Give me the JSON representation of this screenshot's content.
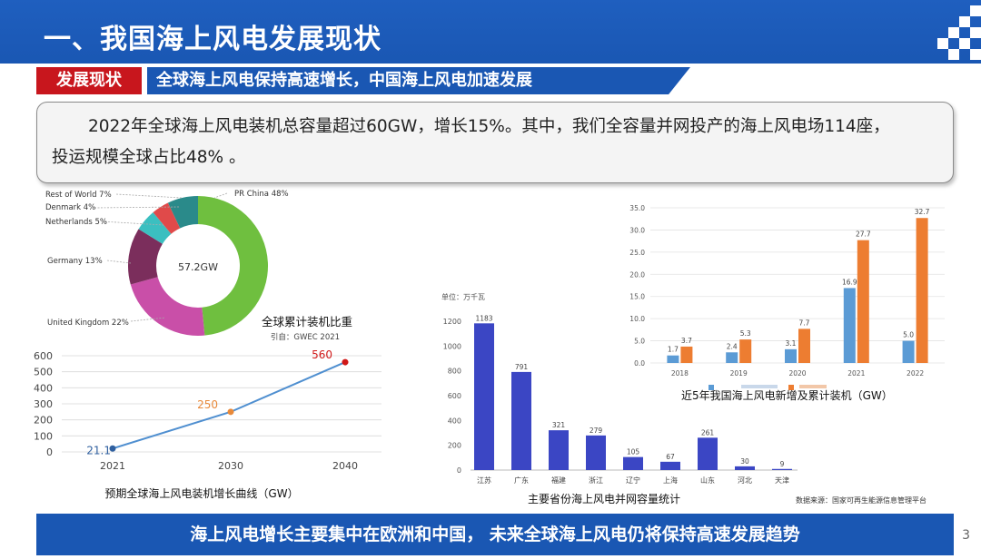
{
  "header": {
    "title": "一、我国海上风电发展现状",
    "bg_color": "#1a57b3"
  },
  "subtitle": {
    "tag": "发展现状",
    "tag_color": "#c8161d",
    "text": "全球海上风电保持高速增长，中国海上风电加速发展"
  },
  "callout": {
    "line1": "2022年全球海上风电装机总容量超过60GW，增长15%。其中，我们全容量并网投产的海上风电场114座，",
    "line2": "投运规模全球占比48% 。"
  },
  "footer": {
    "text": "海上风电增长主要集中在欧洲和中国， 未来全球海上风电仍将保持高速发展趋势"
  },
  "page_number": "3",
  "chart_data": [
    {
      "type": "pie",
      "title": "全球累计装机比重",
      "subtitle": "引自：GWEC 2021",
      "center_label": "57.2GW",
      "slices": [
        {
          "label": "PR China 48%",
          "value": 48,
          "color": "#6fbf3f"
        },
        {
          "label": "United Kingdom 22%",
          "value": 22,
          "color": "#c94fa8"
        },
        {
          "label": "Germany 13%",
          "value": 13,
          "color": "#7b2e5c"
        },
        {
          "label": "Netherlands 5%",
          "value": 5,
          "color": "#3bbfc0"
        },
        {
          "label": "Denmark 4%",
          "value": 4,
          "color": "#e04a4a"
        },
        {
          "label": "Rest of World 7%",
          "value": 7,
          "color": "#2a8a8a"
        }
      ]
    },
    {
      "type": "line",
      "title": "预期全球海上风电装机增长曲线（GW）",
      "x": [
        "2021",
        "2030",
        "2040"
      ],
      "values": [
        21.1,
        250,
        560
      ],
      "point_labels": [
        "21.1",
        "250",
        "560"
      ],
      "point_colors": [
        "#2f5f9f",
        "#e8893a",
        "#d01818"
      ],
      "label_colors": [
        "#2f5f9f",
        "#e8893a",
        "#d01818"
      ],
      "ylim": [
        0,
        600
      ],
      "yticks": [
        "0",
        "100",
        "200",
        "300",
        "400",
        "500",
        "600"
      ],
      "line_color": "#4f8fd0",
      "grid": true
    },
    {
      "type": "bar",
      "title": "主要省份海上风电并网容量统计",
      "unit_label": "单位：万千瓦",
      "categories": [
        "江苏",
        "广东",
        "福建",
        "浙江",
        "辽宁",
        "上海",
        "山东",
        "河北",
        "天津"
      ],
      "values": [
        1183,
        791,
        321,
        279,
        105,
        67,
        261,
        30,
        9
      ],
      "value_labels": [
        "1183",
        "791",
        "321",
        "279",
        "105",
        "67",
        "261",
        "30",
        "9"
      ],
      "ylim": [
        0,
        1200
      ],
      "yticks": [
        "0",
        "200",
        "400",
        "600",
        "800",
        "1000",
        "1200"
      ],
      "bar_color": "#3b46c4"
    },
    {
      "type": "bar",
      "title": "近5年我国海上风电新增及累计装机（GW）",
      "categories": [
        "2018",
        "2019",
        "2020",
        "2021",
        "2022"
      ],
      "series": [
        {
          "values": [
            1.7,
            2.4,
            3.1,
            16.9,
            5.0
          ],
          "value_labels": [
            "1.7",
            "2.4",
            "3.1",
            "16.9",
            "5.0"
          ],
          "color": "#5b9bd5"
        },
        {
          "values": [
            3.7,
            5.3,
            7.7,
            27.7,
            32.7
          ],
          "value_labels": [
            "3.7",
            "5.3",
            "7.7",
            "27.7",
            "32.7"
          ],
          "color": "#ed7d31"
        }
      ],
      "ylim": [
        0,
        35
      ],
      "yticks": [
        "0.0",
        "5.0",
        "10.0",
        "15.0",
        "20.0",
        "25.0",
        "30.0",
        "35.0"
      ],
      "source": "数据来源：国家可再生能源信息管理平台",
      "grid": true
    }
  ]
}
